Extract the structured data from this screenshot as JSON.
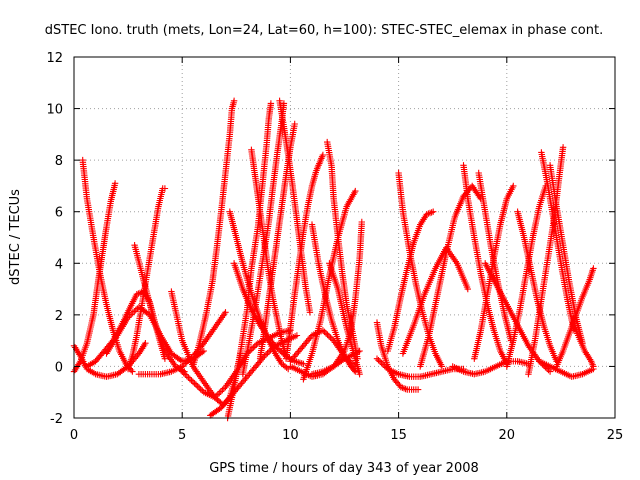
{
  "chart_data": {
    "type": "scatter",
    "title": "dSTEC Iono. truth (mets, Lon=24, Lat=60, h=100): STEC-STEC_elemax in phase cont.",
    "xlabel": "GPS time / hours of day 343 of year 2008",
    "ylabel": "dSTEC  / TECUs",
    "xlim": [
      0,
      25
    ],
    "ylim": [
      -2,
      12
    ],
    "xticks": [
      "0",
      "5",
      "10",
      "15",
      "20",
      "25"
    ],
    "yticks": [
      "-2",
      "0",
      "2",
      "4",
      "6",
      "8",
      "10",
      "12"
    ],
    "grid": true,
    "legend": "none",
    "marker": "plus",
    "color": "#ff0000",
    "series": [
      {
        "x": [
          0.0,
          0.3,
          0.6,
          1.0,
          1.5,
          2.0,
          2.5,
          3.0,
          3.3
        ],
        "y": [
          0.8,
          0.4,
          -0.1,
          -0.3,
          -0.4,
          -0.3,
          0.0,
          0.5,
          0.9
        ]
      },
      {
        "x": [
          0.4,
          0.6,
          0.9,
          1.2,
          1.5,
          1.8,
          2.1,
          2.4,
          2.7
        ],
        "y": [
          8.0,
          6.5,
          5.0,
          3.6,
          2.4,
          1.4,
          0.6,
          0.1,
          -0.2
        ]
      },
      {
        "x": [
          0.0,
          0.3,
          0.6,
          0.9,
          1.1,
          1.3,
          1.5,
          1.7,
          1.9
        ],
        "y": [
          -0.2,
          0.2,
          0.9,
          2.0,
          3.2,
          4.3,
          5.4,
          6.4,
          7.1
        ]
      },
      {
        "x": [
          0.6,
          1.0,
          1.4,
          1.8,
          2.2,
          2.6,
          2.9,
          3.2,
          3.5,
          3.8,
          4.2
        ],
        "y": [
          0.0,
          0.2,
          0.6,
          1.0,
          1.6,
          2.3,
          2.8,
          2.9,
          2.5,
          1.5,
          0.3
        ]
      },
      {
        "x": [
          2.5,
          2.7,
          2.9,
          3.1,
          3.3,
          3.5,
          3.7,
          3.9,
          4.1,
          4.2
        ],
        "y": [
          -0.1,
          0.4,
          1.2,
          2.2,
          3.2,
          4.2,
          5.2,
          6.2,
          6.9,
          6.9
        ]
      },
      {
        "x": [
          1.5,
          2.0,
          2.5,
          3.0,
          3.5,
          4.0,
          4.5,
          5.0,
          5.5,
          6.0
        ],
        "y": [
          0.5,
          1.2,
          1.9,
          2.3,
          2.0,
          1.2,
          0.5,
          0.2,
          0.3,
          0.6
        ]
      },
      {
        "x": [
          2.8,
          3.2,
          3.7,
          4.2,
          4.7,
          5.1
        ],
        "y": [
          4.7,
          3.4,
          1.8,
          0.6,
          0.0,
          -0.2
        ]
      },
      {
        "x": [
          4.5,
          5.0,
          5.5,
          6.0,
          6.5,
          6.9,
          7.2,
          7.5,
          7.7
        ],
        "y": [
          2.9,
          1.0,
          0.0,
          -0.6,
          -1.2,
          -1.5,
          -1.2,
          -0.3,
          0.5
        ]
      },
      {
        "x": [
          3.0,
          3.5,
          4.0,
          4.5,
          5.0,
          5.5,
          6.0,
          6.5,
          7.0
        ],
        "y": [
          -0.3,
          -0.3,
          -0.3,
          -0.2,
          0.0,
          0.4,
          0.9,
          1.5,
          2.1
        ]
      },
      {
        "x": [
          5.5,
          5.8,
          6.1,
          6.4,
          6.6,
          6.8,
          7.0,
          7.2,
          7.3,
          7.4
        ],
        "y": [
          0.0,
          0.9,
          2.0,
          3.3,
          4.6,
          6.0,
          7.5,
          9.0,
          10.0,
          10.3
        ]
      },
      {
        "x": [
          5.0,
          5.5,
          6.0,
          6.5,
          7.0,
          7.5,
          8.0,
          8.5,
          9.0,
          9.5,
          10.0
        ],
        "y": [
          -0.2,
          -0.6,
          -1.0,
          -1.2,
          -0.8,
          -0.2,
          0.5,
          0.9,
          1.1,
          1.3,
          1.4
        ]
      },
      {
        "x": [
          6.3,
          6.8,
          7.3,
          7.8,
          8.3,
          8.8,
          9.3,
          9.8,
          10.3
        ],
        "y": [
          -1.9,
          -1.6,
          -1.1,
          -0.6,
          -0.1,
          0.4,
          0.8,
          1.0,
          1.2
        ]
      },
      {
        "x": [
          7.1,
          7.4,
          7.7,
          8.0,
          8.2,
          8.5,
          8.7,
          8.9,
          9.0,
          9.1
        ],
        "y": [
          -2.0,
          -0.8,
          0.6,
          2.2,
          3.8,
          5.4,
          7.0,
          8.6,
          9.6,
          10.2
        ]
      },
      {
        "x": [
          7.2,
          7.5,
          7.8,
          8.1,
          8.4,
          8.7,
          9.0,
          9.3,
          9.6,
          9.9
        ],
        "y": [
          6.0,
          5.0,
          4.0,
          3.1,
          2.3,
          1.6,
          1.0,
          0.5,
          0.1,
          -0.1
        ]
      },
      {
        "x": [
          7.4,
          7.8,
          8.2,
          8.6,
          9.0,
          9.4,
          9.8,
          10.2,
          10.6
        ],
        "y": [
          4.0,
          3.0,
          2.2,
          1.6,
          1.1,
          0.7,
          0.4,
          0.2,
          0.1
        ]
      },
      {
        "x": [
          8.2,
          8.4,
          8.6,
          8.8,
          9.0,
          9.2,
          9.4,
          9.6,
          9.8
        ],
        "y": [
          8.4,
          7.2,
          6.0,
          4.8,
          3.6,
          2.6,
          1.8,
          1.0,
          0.4
        ]
      },
      {
        "x": [
          7.8,
          8.1,
          8.4,
          8.7,
          9.0,
          9.2,
          9.4,
          9.6,
          9.7
        ],
        "y": [
          -0.3,
          1.0,
          2.4,
          4.0,
          5.6,
          7.0,
          8.3,
          9.5,
          10.2
        ]
      },
      {
        "x": [
          8.6,
          8.8,
          9.0,
          9.2,
          9.4,
          9.6,
          9.8,
          10.0,
          10.2
        ],
        "y": [
          0.3,
          1.4,
          2.6,
          3.8,
          5.0,
          6.2,
          7.4,
          8.5,
          9.4
        ]
      },
      {
        "x": [
          9.5,
          9.7,
          9.9,
          10.1,
          10.3,
          10.5,
          10.7,
          10.9
        ],
        "y": [
          10.3,
          9.3,
          8.2,
          7.0,
          5.7,
          4.4,
          3.1,
          2.1
        ]
      },
      {
        "x": [
          9.8,
          10.0,
          10.2,
          10.4,
          10.6,
          10.8,
          11.0,
          11.2,
          11.4,
          11.5
        ],
        "y": [
          0.3,
          1.5,
          2.8,
          4.0,
          5.2,
          6.2,
          7.0,
          7.6,
          8.0,
          8.2
        ]
      },
      {
        "x": [
          10.0,
          10.5,
          11.0,
          11.5,
          12.0,
          12.5,
          13.0
        ],
        "y": [
          0.2,
          0.7,
          1.2,
          1.4,
          1.0,
          0.4,
          0.0
        ]
      },
      {
        "x": [
          10.6,
          11.0,
          11.4,
          11.8,
          12.2,
          12.6,
          13.0
        ],
        "y": [
          -0.5,
          0.5,
          1.8,
          3.5,
          5.0,
          6.2,
          6.8
        ]
      },
      {
        "x": [
          11.0,
          11.3,
          11.6,
          11.9,
          12.2,
          12.5,
          12.8,
          13.0
        ],
        "y": [
          5.5,
          4.0,
          2.8,
          1.8,
          1.0,
          0.4,
          0.0,
          -0.2
        ]
      },
      {
        "x": [
          11.7,
          11.9,
          12.0,
          12.2,
          12.4,
          12.6,
          12.9,
          13.1
        ],
        "y": [
          8.7,
          7.8,
          6.5,
          5.0,
          3.6,
          2.4,
          1.2,
          0.3
        ]
      },
      {
        "x": [
          11.8,
          12.2,
          12.6,
          13.0,
          13.2
        ],
        "y": [
          4.0,
          3.0,
          1.5,
          0.3,
          -0.3
        ]
      },
      {
        "x": [
          11.0,
          11.5,
          12.0,
          12.5,
          12.8,
          13.0,
          13.2,
          13.3
        ],
        "y": [
          -0.3,
          -0.2,
          0.0,
          0.6,
          1.4,
          2.6,
          4.2,
          5.6
        ]
      },
      {
        "x": [
          10.0,
          10.5,
          11.0,
          11.5,
          12.0,
          12.5,
          13.0,
          13.2
        ],
        "y": [
          0.0,
          -0.2,
          -0.4,
          -0.3,
          0.0,
          0.3,
          0.5,
          0.6
        ]
      },
      {
        "x": [
          14.0,
          14.2,
          14.5,
          14.8,
          15.1,
          15.4,
          15.7,
          15.9
        ],
        "y": [
          1.7,
          0.8,
          0.0,
          -0.5,
          -0.8,
          -0.9,
          -0.9,
          -0.9
        ]
      },
      {
        "x": [
          14.0,
          14.5,
          15.0,
          15.5,
          16.0,
          16.5,
          17.0,
          17.5,
          18.0
        ],
        "y": [
          0.3,
          -0.1,
          -0.3,
          -0.4,
          -0.4,
          -0.3,
          -0.2,
          -0.1,
          -0.1
        ]
      },
      {
        "x": [
          14.5,
          14.8,
          15.1,
          15.4,
          15.7,
          16.0,
          16.3,
          16.6
        ],
        "y": [
          0.6,
          1.5,
          2.7,
          3.8,
          4.8,
          5.5,
          5.9,
          6.0
        ]
      },
      {
        "x": [
          15.0,
          15.2,
          15.5,
          15.8,
          16.1,
          16.4,
          16.7,
          17.0
        ],
        "y": [
          7.5,
          6.0,
          4.5,
          3.2,
          2.1,
          1.2,
          0.5,
          0.0
        ]
      },
      {
        "x": [
          15.2,
          15.7,
          16.2,
          16.7,
          17.2,
          17.7,
          18.2
        ],
        "y": [
          0.5,
          1.6,
          2.8,
          3.8,
          4.6,
          4.0,
          3.0
        ]
      },
      {
        "x": [
          16.0,
          16.4,
          16.8,
          17.2,
          17.6,
          18.0,
          18.4,
          18.8
        ],
        "y": [
          0.0,
          1.2,
          2.8,
          4.4,
          5.8,
          6.6,
          7.0,
          6.5
        ]
      },
      {
        "x": [
          17.5,
          18.0,
          18.5,
          19.0,
          19.5,
          20.0,
          20.5,
          21.0
        ],
        "y": [
          0.0,
          -0.2,
          -0.3,
          -0.2,
          0.0,
          0.2,
          0.2,
          0.1
        ]
      },
      {
        "x": [
          18.0,
          18.2,
          18.5,
          18.8,
          19.1,
          19.4,
          19.7,
          20.0
        ],
        "y": [
          7.8,
          6.5,
          5.0,
          3.6,
          2.4,
          1.4,
          0.6,
          0.1
        ]
      },
      {
        "x": [
          18.5,
          18.8,
          19.1,
          19.4,
          19.7,
          20.0,
          20.3
        ],
        "y": [
          0.3,
          1.4,
          2.8,
          4.2,
          5.5,
          6.5,
          7.0
        ]
      },
      {
        "x": [
          18.7,
          19.0,
          19.3,
          19.6,
          19.9,
          20.2
        ],
        "y": [
          7.5,
          6.0,
          4.5,
          3.2,
          2.0,
          1.0
        ]
      },
      {
        "x": [
          19.0,
          19.5,
          20.0,
          20.5,
          21.0,
          21.5,
          22.0
        ],
        "y": [
          4.0,
          3.2,
          2.4,
          1.6,
          0.8,
          0.2,
          -0.2
        ]
      },
      {
        "x": [
          20.0,
          20.3,
          20.6,
          20.9,
          21.2,
          21.5,
          21.8
        ],
        "y": [
          0.0,
          1.0,
          2.2,
          3.6,
          5.0,
          6.2,
          7.0
        ]
      },
      {
        "x": [
          20.5,
          20.8,
          21.1,
          21.4,
          21.7,
          22.0,
          22.3
        ],
        "y": [
          6.0,
          5.0,
          3.8,
          2.6,
          1.6,
          0.8,
          0.2
        ]
      },
      {
        "x": [
          21.0,
          21.3,
          21.6,
          21.9,
          22.2,
          22.4,
          22.6
        ],
        "y": [
          -0.3,
          1.0,
          2.6,
          4.2,
          5.8,
          7.2,
          8.5
        ]
      },
      {
        "x": [
          21.6,
          21.9,
          22.2,
          22.5,
          22.8,
          23.1
        ],
        "y": [
          8.3,
          7.0,
          5.5,
          4.0,
          2.6,
          1.4
        ]
      },
      {
        "x": [
          22.0,
          22.3,
          22.6,
          22.9,
          23.2,
          23.5
        ],
        "y": [
          7.8,
          6.2,
          4.7,
          3.2,
          1.9,
          0.9
        ]
      },
      {
        "x": [
          22.3,
          22.6,
          22.9,
          23.2,
          23.5,
          23.8,
          24.0
        ],
        "y": [
          0.0,
          0.6,
          1.3,
          2.0,
          2.7,
          3.3,
          3.8
        ]
      },
      {
        "x": [
          21.5,
          22.0,
          22.5,
          23.0,
          23.5,
          24.0
        ],
        "y": [
          0.2,
          0.0,
          -0.2,
          -0.4,
          -0.3,
          -0.1
        ]
      },
      {
        "x": [
          23.0,
          23.3,
          23.6,
          23.9,
          24.0
        ],
        "y": [
          1.8,
          1.2,
          0.6,
          0.2,
          0.0
        ]
      }
    ]
  }
}
